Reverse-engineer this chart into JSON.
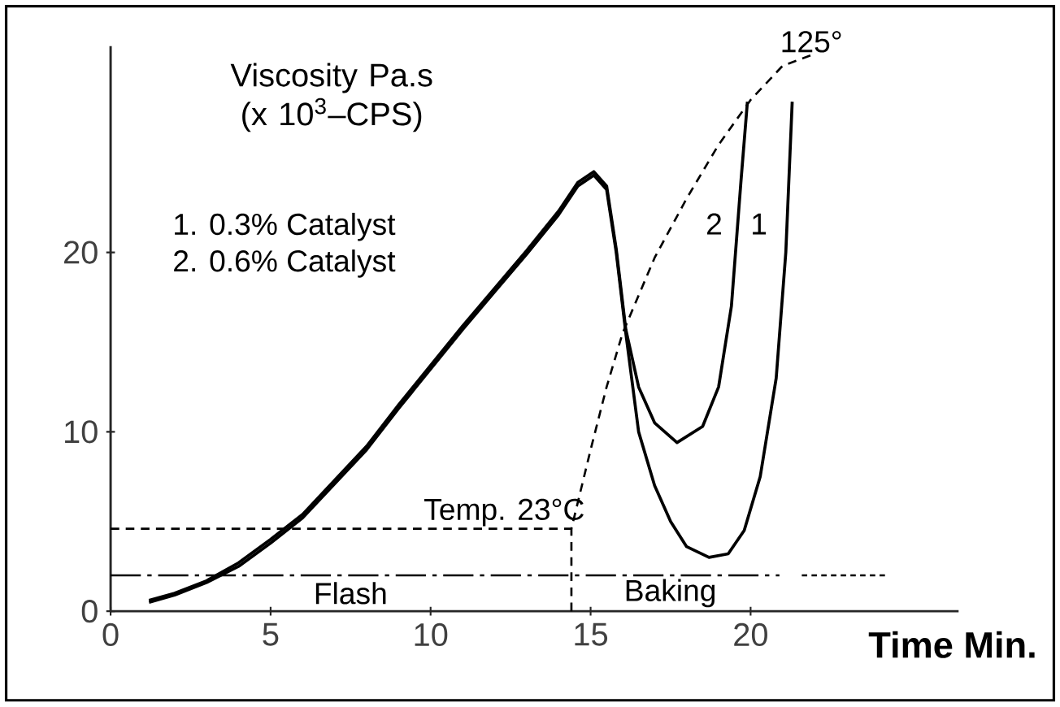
{
  "chart_data": {
    "type": "line",
    "ylabel": "Viscosity Pa.s (x 10$^{3}$–CPS)",
    "xlabel": "Time Min.",
    "xlim": [
      0,
      26.5
    ],
    "ylim": [
      0,
      31.5
    ],
    "xticks": [
      0,
      5,
      10,
      15,
      20
    ],
    "yticks": [
      0,
      10,
      20
    ],
    "grid": false,
    "legend": false,
    "series": [
      {
        "name": "1",
        "color": "#000000",
        "line_style": "solid",
        "x": [
          1.2,
          2,
          3,
          4,
          5,
          6,
          7,
          8,
          9,
          10,
          11,
          12,
          13,
          14,
          14.6,
          15.1,
          15.5,
          15.8,
          16.1,
          16.5,
          17,
          17.5,
          18,
          18.7,
          19.3,
          19.8,
          20.3,
          20.8,
          21.1,
          21.3
        ],
        "values": [
          0.5,
          0.9,
          1.6,
          2.5,
          3.8,
          5.2,
          7.1,
          9.0,
          11.3,
          13.5,
          15.7,
          17.8,
          19.9,
          22.1,
          23.7,
          24.3,
          23.5,
          20,
          15.5,
          10,
          7,
          5,
          3.6,
          3.0,
          3.2,
          4.5,
          7.5,
          13,
          20,
          28.4
        ]
      },
      {
        "name": "2",
        "color": "#000000",
        "line_style": "solid",
        "x": [
          1.2,
          2,
          3,
          4,
          5,
          6,
          7,
          8,
          9,
          10,
          11,
          12,
          13,
          14,
          14.6,
          15.1,
          15.5,
          15.8,
          16.1,
          16.5,
          17,
          17.7,
          18.5,
          19,
          19.4,
          19.7,
          19.9
        ],
        "values": [
          0.6,
          1.0,
          1.7,
          2.7,
          4.0,
          5.4,
          7.3,
          9.2,
          11.5,
          13.7,
          15.9,
          18.0,
          20.1,
          22.3,
          23.9,
          24.5,
          23.7,
          20.2,
          15.7,
          12.5,
          10.5,
          9.4,
          10.3,
          12.5,
          17,
          24,
          28.4
        ]
      },
      {
        "color": "#000000",
        "line_style": "dashed",
        "x": [
          0,
          14.4,
          15,
          15.5,
          16,
          17,
          18,
          19,
          20,
          21,
          21.9
        ],
        "values": [
          4.6,
          4.6,
          9,
          12.5,
          15.5,
          19.7,
          23,
          26,
          28.5,
          30.4,
          31
        ]
      },
      {
        "color": "#000000",
        "line_style": "dashed",
        "x": [
          14.4,
          14.4
        ],
        "values": [
          0,
          4.6
        ]
      },
      {
        "color": "#000000",
        "line_style": "dashdot",
        "x": [
          0,
          20.9
        ],
        "values": [
          2,
          2
        ]
      },
      {
        "color": "#000000",
        "line_style": "dotted",
        "x": [
          21.6,
          24.3
        ],
        "values": [
          2,
          2
        ]
      }
    ],
    "annotations": [
      "1. 0.3% Catalyst",
      "2. 0.6% Catalyst",
      "Flash",
      "Baking",
      {
        "text": "Temp. 23°C",
        "x": 12.3,
        "y": 4.6
      },
      {
        "text": "125°",
        "x": 21.9,
        "y": 31
      }
    ]
  }
}
